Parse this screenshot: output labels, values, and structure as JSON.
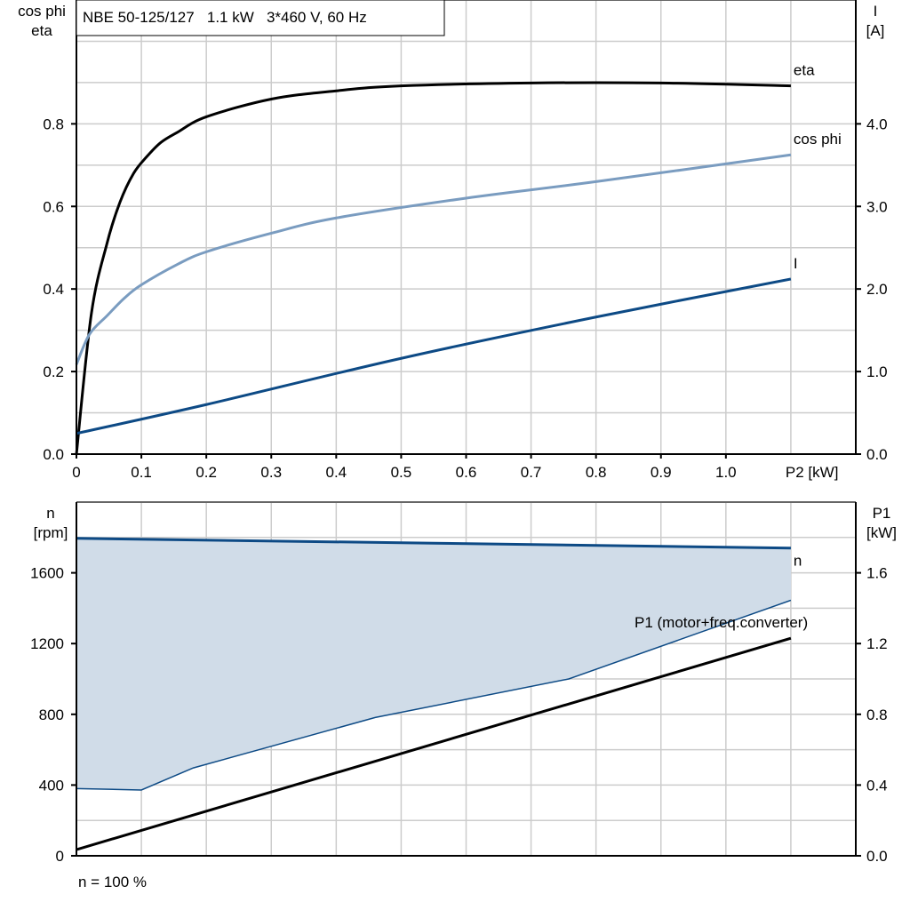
{
  "title": "NBE 50-125/127   1.1 kW   3*460 V, 60 Hz",
  "footer": "n = 100 %",
  "colors": {
    "eta": "#000000",
    "cos_phi": "#7a9cc0",
    "I": "#0d4a85",
    "n": "#0d4a85",
    "n_band": "#d0dce8",
    "P1": "#000000",
    "grid": "#cccccc"
  },
  "chart_data": [
    {
      "type": "line",
      "grid": true,
      "xlabel": "P2 [kW]",
      "xlim": [
        0,
        1.2
      ],
      "xticks": [
        "0",
        "0.1",
        "0.2",
        "0.3",
        "0.4",
        "0.5",
        "0.6",
        "0.7",
        "0.8",
        "0.9",
        "1.0"
      ],
      "ylabel_left": [
        "cos phi",
        "eta"
      ],
      "ylim_left": [
        0,
        1.1
      ],
      "yticks_left": [
        "0.0",
        "0.2",
        "0.4",
        "0.6",
        "0.8"
      ],
      "ylabel_right": [
        "I",
        "[A]"
      ],
      "ylim_right": [
        0,
        5.5
      ],
      "yticks_right": [
        "0.0",
        "1.0",
        "2.0",
        "3.0",
        "4.0"
      ],
      "series": [
        {
          "name": "eta",
          "axis": "left",
          "x": [
            0,
            0.023,
            0.047,
            0.067,
            0.088,
            0.108,
            0.13,
            0.156,
            0.2,
            0.3,
            0.4,
            0.5,
            0.7,
            0.9,
            1.1
          ],
          "y": [
            0,
            0.34,
            0.51,
            0.61,
            0.68,
            0.72,
            0.755,
            0.78,
            0.817,
            0.86,
            0.88,
            0.892,
            0.899,
            0.899,
            0.892
          ]
        },
        {
          "name": "cos phi",
          "axis": "left",
          "x": [
            0,
            0.02,
            0.047,
            0.074,
            0.1,
            0.156,
            0.2,
            0.3,
            0.4,
            0.6,
            0.8,
            1.1
          ],
          "y": [
            0.217,
            0.29,
            0.335,
            0.378,
            0.41,
            0.46,
            0.49,
            0.535,
            0.572,
            0.62,
            0.66,
            0.725
          ]
        },
        {
          "name": "I",
          "axis": "right",
          "x": [
            0,
            0.2,
            0.5,
            0.8,
            1.1
          ],
          "y": [
            0.25,
            0.6,
            1.16,
            1.66,
            2.12
          ]
        }
      ]
    },
    {
      "type": "line",
      "grid": true,
      "xlim": [
        0,
        1.2
      ],
      "ylabel_left": [
        "n",
        "[rpm]"
      ],
      "ylim_left": [
        0,
        2000
      ],
      "yticks_left": [
        "0",
        "400",
        "800",
        "1200",
        "1600"
      ],
      "ylabel_right": [
        "P1",
        "[kW]"
      ],
      "ylim_right": [
        0,
        2.0
      ],
      "yticks_right": [
        "0.0",
        "0.4",
        "0.8",
        "1.2",
        "1.6"
      ],
      "series": [
        {
          "name": "n",
          "axis": "left",
          "x": [
            0,
            1.1
          ],
          "y": [
            1795,
            1740
          ]
        },
        {
          "axis": "left",
          "band_lower": true,
          "x": [
            0,
            0.1,
            0.18,
            0.46,
            0.758,
            1.1
          ],
          "y": [
            380,
            372,
            497,
            782,
            1000,
            1445
          ]
        },
        {
          "name": "P1 (motor+freq.converter)",
          "axis": "right",
          "x": [
            0,
            1.1
          ],
          "y": [
            0.035,
            1.23
          ]
        }
      ]
    }
  ]
}
